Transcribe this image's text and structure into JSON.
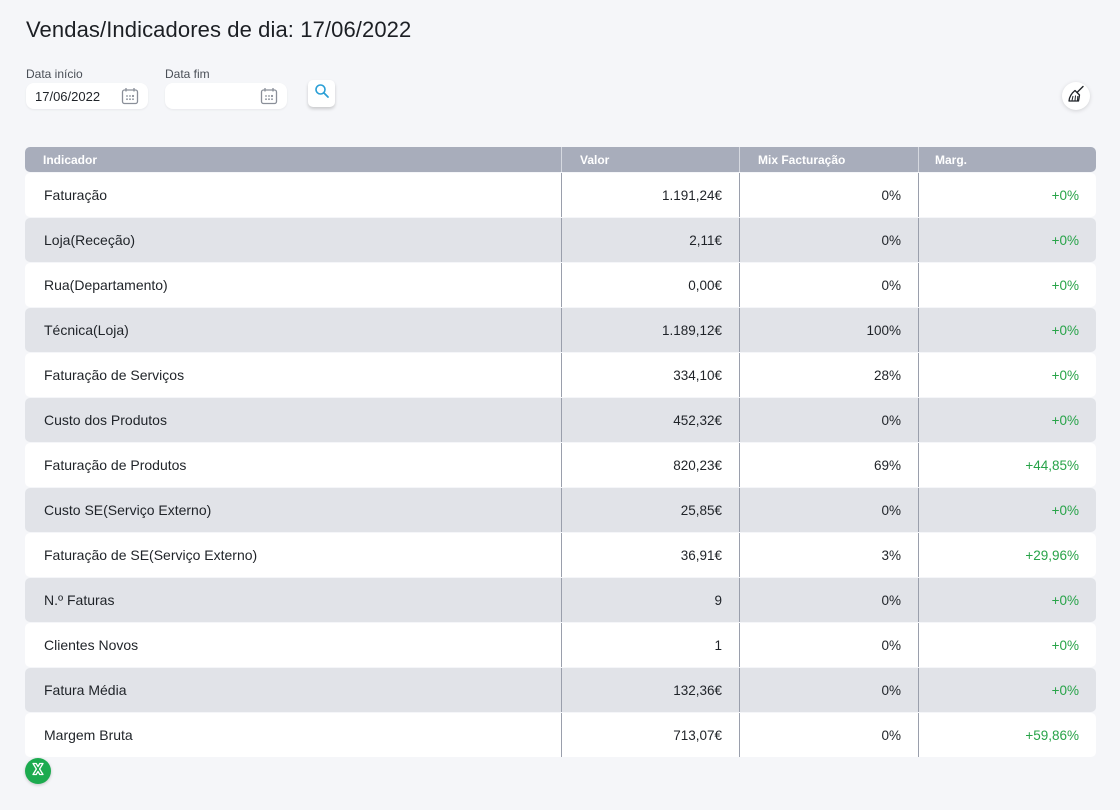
{
  "header": {
    "title": "Vendas/Indicadores de dia: 17/06/2022"
  },
  "filters": {
    "start_label": "Data início",
    "start_value": "17/06/2022",
    "end_label": "Data fim",
    "end_value": "",
    "calendar_icon": "calendar-icon",
    "search_icon": "search-icon",
    "clear_icon": "broom-icon"
  },
  "table": {
    "columns": [
      "Indicador",
      "Valor",
      "Mix Facturação",
      "Marg."
    ],
    "rows": [
      {
        "indicador": "Faturação",
        "valor": "1.191,24€",
        "mix": "0%",
        "marg": "+0%"
      },
      {
        "indicador": "Loja(Receção)",
        "valor": "2,11€",
        "mix": "0%",
        "marg": "+0%"
      },
      {
        "indicador": "Rua(Departamento)",
        "valor": "0,00€",
        "mix": "0%",
        "marg": "+0%"
      },
      {
        "indicador": "Técnica(Loja)",
        "valor": "1.189,12€",
        "mix": "100%",
        "marg": "+0%"
      },
      {
        "indicador": "Faturação de Serviços",
        "valor": "334,10€",
        "mix": "28%",
        "marg": "+0%"
      },
      {
        "indicador": "Custo dos Produtos",
        "valor": "452,32€",
        "mix": "0%",
        "marg": "+0%"
      },
      {
        "indicador": "Faturação de Produtos",
        "valor": "820,23€",
        "mix": "69%",
        "marg": "+44,85%"
      },
      {
        "indicador": "Custo SE(Serviço Externo)",
        "valor": "25,85€",
        "mix": "0%",
        "marg": "+0%"
      },
      {
        "indicador": "Faturação de SE(Serviço Externo)",
        "valor": "36,91€",
        "mix": "3%",
        "marg": "+29,96%"
      },
      {
        "indicador": "N.º Faturas",
        "valor": "9",
        "mix": "0%",
        "marg": "+0%"
      },
      {
        "indicador": "Clientes Novos",
        "valor": "1",
        "mix": "0%",
        "marg": "+0%"
      },
      {
        "indicador": "Fatura Média",
        "valor": "132,36€",
        "mix": "0%",
        "marg": "+0%"
      },
      {
        "indicador": "Margem Bruta",
        "valor": "713,07€",
        "mix": "0%",
        "marg": "+59,86%"
      }
    ]
  },
  "footer": {
    "export_icon": "excel-icon"
  },
  "colors": {
    "header_bg": "#a8adbb",
    "row_alt_bg": "#e1e3e8",
    "margin_positive": "#27a348",
    "accent_search": "#2a9fd6",
    "excel_green": "#1cab4f"
  }
}
